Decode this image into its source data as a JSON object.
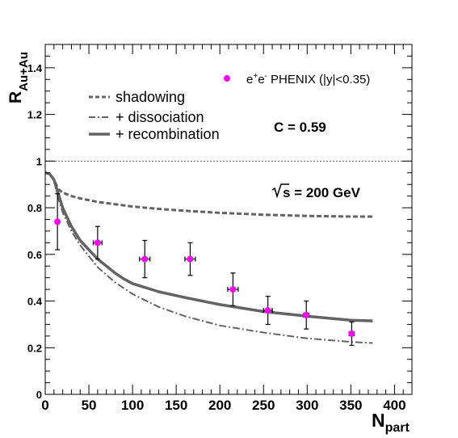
{
  "chart_data": {
    "type": "line",
    "title": "",
    "xlabel": {
      "main": "N",
      "sub": "part"
    },
    "ylabel": {
      "main": "R",
      "sub": "Au+Au"
    },
    "xlim": [
      0,
      420
    ],
    "ylim": [
      0,
      1.5
    ],
    "x_ticks": [
      0,
      50,
      100,
      150,
      200,
      250,
      300,
      350,
      400
    ],
    "x_tick_labels": [
      "0",
      "50",
      "100",
      "150",
      "200",
      "250",
      "300",
      "350",
      "400"
    ],
    "y_ticks": [
      0,
      0.2,
      0.4,
      0.6,
      0.8,
      1,
      1.2,
      1.4
    ],
    "y_tick_labels": [
      "0",
      "0.2",
      "0.4",
      "0.6",
      "0.8",
      "1",
      "1.2",
      "1.4"
    ],
    "reference_line": {
      "y": 1.0,
      "style": "dotted"
    },
    "annotations": {
      "c_value": "C = 0.59",
      "energy_prefix": "s = 200 GeV"
    },
    "legend_top": {
      "label_parts": [
        "e",
        "+",
        "e",
        "-",
        " PHENIX (|y|<0.35)"
      ],
      "marker_color": "#ff00ff",
      "placement": "top-right"
    },
    "legend": {
      "placement": "top-left",
      "entries": [
        {
          "label": "shadowing",
          "style": "dashed"
        },
        {
          "label": "+ dissociation",
          "style": "dashdot"
        },
        {
          "label": "+ recombination",
          "style": "solid"
        }
      ]
    },
    "series": [
      {
        "name": "shadowing",
        "style": "dashed",
        "color": "#636363",
        "x": [
          0,
          5,
          10,
          15,
          20,
          30,
          40,
          60,
          80,
          100,
          130,
          160,
          200,
          250,
          300,
          350,
          375
        ],
        "y": [
          0.95,
          0.945,
          0.92,
          0.88,
          0.865,
          0.85,
          0.84,
          0.825,
          0.815,
          0.805,
          0.795,
          0.787,
          0.778,
          0.77,
          0.765,
          0.762,
          0.762
        ]
      },
      {
        "name": "+ dissociation",
        "style": "dashdot",
        "color": "#636363",
        "x": [
          0,
          5,
          10,
          15,
          20,
          30,
          40,
          60,
          80,
          100,
          130,
          160,
          200,
          250,
          300,
          350,
          375
        ],
        "y": [
          0.95,
          0.945,
          0.915,
          0.84,
          0.78,
          0.7,
          0.64,
          0.545,
          0.48,
          0.43,
          0.375,
          0.335,
          0.295,
          0.265,
          0.24,
          0.225,
          0.22
        ]
      },
      {
        "name": "+ recombination",
        "style": "solid",
        "color": "#636363",
        "x": [
          0,
          5,
          10,
          15,
          20,
          30,
          40,
          60,
          80,
          90,
          100,
          130,
          160,
          200,
          250,
          300,
          350,
          375
        ],
        "y": [
          0.95,
          0.945,
          0.92,
          0.86,
          0.8,
          0.72,
          0.66,
          0.58,
          0.52,
          0.495,
          0.475,
          0.44,
          0.415,
          0.385,
          0.355,
          0.335,
          0.318,
          0.315
        ]
      }
    ],
    "data_points": {
      "name": "e+e- PHENIX (|y|<0.35)",
      "color": "#ff00ff",
      "x": [
        14,
        60,
        114,
        166,
        215,
        255,
        299,
        351
      ],
      "y": [
        0.74,
        0.65,
        0.58,
        0.58,
        0.45,
        0.36,
        0.34,
        0.26
      ],
      "y_err": [
        0.12,
        0.07,
        0.08,
        0.07,
        0.07,
        0.06,
        0.06,
        0.05
      ],
      "x_err": [
        0,
        5,
        6,
        6,
        6,
        5,
        3,
        3
      ]
    }
  }
}
